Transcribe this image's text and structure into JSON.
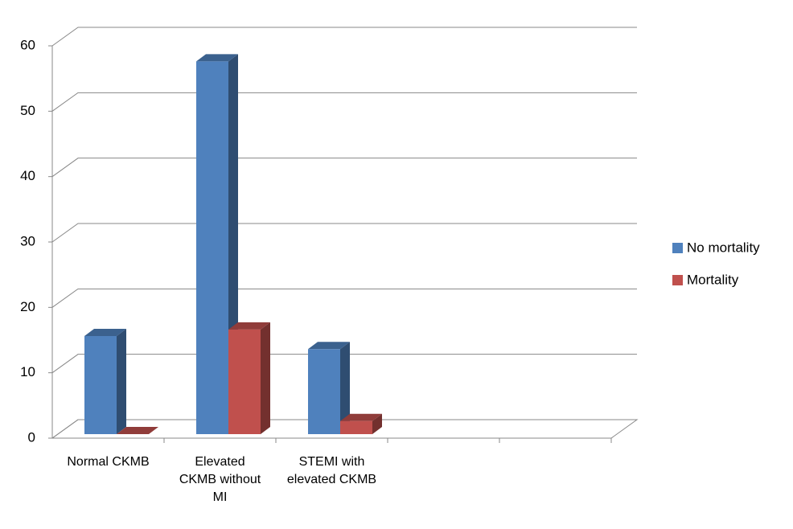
{
  "chart_data": {
    "type": "bar3d",
    "categories": [
      "Normal CKMB",
      "Elevated CKMB without MI",
      "STEMI with elevated CKMB",
      null,
      null
    ],
    "series": [
      {
        "name": "No mortality",
        "color": "#4f81bd",
        "values": [
          15,
          57,
          13,
          null,
          null
        ]
      },
      {
        "name": "Mortality",
        "color": "#c0504d",
        "values": [
          0,
          16,
          2,
          null,
          null
        ]
      }
    ],
    "ylim": [
      0,
      60
    ],
    "yticks": [
      0,
      10,
      20,
      30,
      40,
      50,
      60
    ],
    "grid": true,
    "legend_position": "right"
  }
}
